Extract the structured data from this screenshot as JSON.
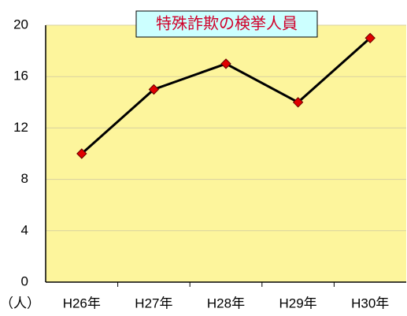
{
  "chart_data": {
    "type": "line",
    "title": "特殊詐欺の検挙人員",
    "y_label": "（人）",
    "categories": [
      "H26年",
      "H27年",
      "H28年",
      "H29年",
      "H30年"
    ],
    "values": [
      10,
      15,
      17,
      14,
      19
    ],
    "color": "#000000",
    "marker_color": "#e00000",
    "ylim": [
      0,
      20
    ],
    "yticks": [
      0,
      4,
      8,
      12,
      16,
      20
    ],
    "grid": true
  }
}
